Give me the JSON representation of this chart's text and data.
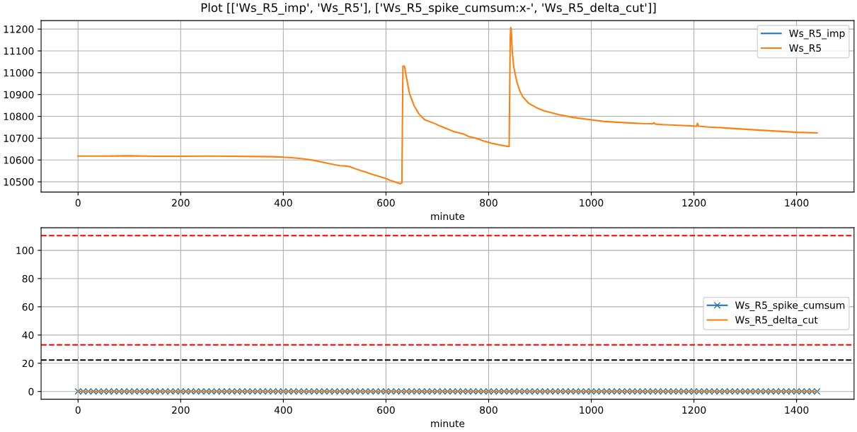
{
  "chart_data": [
    {
      "type": "line",
      "title": "Plot [['Ws_R5_imp', 'Ws_R5'], ['Ws_R5_spike_cumsum:x-', 'Ws_R5_delta_cut']]",
      "xlabel": "minute",
      "x": [
        0,
        50,
        100,
        150,
        200,
        250,
        300,
        350,
        380,
        400,
        420,
        440,
        460,
        480,
        500,
        510,
        520,
        530,
        540,
        550,
        560,
        575,
        590,
        600,
        610,
        620,
        628,
        631,
        633,
        636,
        641,
        646,
        655,
        664,
        675,
        693,
        704,
        720,
        733,
        750,
        762,
        775,
        791,
        809,
        820,
        829,
        838,
        840,
        842,
        843,
        844,
        846,
        849,
        855,
        861,
        867,
        878,
        893,
        907,
        936,
        965,
        1000,
        1023,
        1050,
        1081,
        1100,
        1120,
        1122,
        1124,
        1139,
        1170,
        1197,
        1205,
        1207,
        1209,
        1230,
        1255,
        1280,
        1313,
        1340,
        1371,
        1400,
        1440
      ],
      "series": [
        {
          "name": "Ws_R5_imp",
          "color": "#1f77b4",
          "values": [
            null,
            null,
            null,
            null,
            null,
            null,
            null,
            null,
            null,
            null,
            null,
            null,
            null,
            null,
            null,
            null,
            null,
            null,
            null,
            null,
            null,
            null,
            null,
            null,
            null,
            null,
            null,
            null,
            null,
            null,
            null,
            null,
            null,
            null,
            null,
            null,
            null,
            null,
            null,
            null,
            null,
            null,
            null,
            null,
            null,
            null,
            null,
            null,
            null,
            null,
            null,
            null,
            null,
            null,
            null,
            null,
            null,
            null,
            null,
            null,
            null,
            null,
            null,
            null,
            null,
            null,
            null,
            null,
            null,
            null,
            null,
            null,
            null,
            null,
            null,
            null,
            null,
            null,
            null,
            null,
            null,
            null,
            null
          ]
        },
        {
          "name": "Ws_R5",
          "color": "#ff7f0e",
          "values": [
            10618,
            10618,
            10619,
            10617,
            10617,
            10618,
            10617,
            10616,
            10615,
            10613,
            10610,
            10605,
            10598,
            10588,
            10578,
            10574,
            10573,
            10569,
            10560,
            10552,
            10545,
            10533,
            10522,
            10515,
            10505,
            10497,
            10491,
            10495,
            11030,
            11030,
            10965,
            10903,
            10848,
            10812,
            10785,
            10769,
            10757,
            10742,
            10730,
            10720,
            10707,
            10700,
            10687,
            10675,
            10670,
            10666,
            10662,
            10662,
            11150,
            11207,
            11200,
            11100,
            11025,
            10958,
            10915,
            10888,
            10860,
            10840,
            10826,
            10808,
            10795,
            10784,
            10777,
            10773,
            10769,
            10767,
            10766,
            10771,
            10765,
            10762,
            10759,
            10756,
            10754,
            10768,
            10755,
            10751,
            10748,
            10744,
            10739,
            10735,
            10731,
            10727,
            10724
          ]
        }
      ],
      "xlim": [
        -72,
        1512
      ],
      "ylim": [
        10453,
        11239
      ],
      "xticks": [
        0,
        200,
        400,
        600,
        800,
        1000,
        1200,
        1400
      ],
      "yticks": [
        10500,
        10600,
        10700,
        10800,
        10900,
        11000,
        11100,
        11200
      ],
      "grid": true,
      "legend": "top right",
      "marker": "none",
      "line_style": "solid"
    },
    {
      "type": "line",
      "xlabel": "minute",
      "x": [
        0,
        10,
        20,
        30,
        40,
        50,
        60,
        70,
        80,
        90,
        100,
        110,
        120,
        130,
        140,
        150,
        160,
        170,
        180,
        190,
        200,
        210,
        220,
        230,
        240,
        250,
        260,
        270,
        280,
        290,
        300,
        310,
        320,
        330,
        340,
        350,
        360,
        370,
        380,
        390,
        400,
        410,
        420,
        430,
        440,
        450,
        460,
        470,
        480,
        490,
        500,
        510,
        520,
        530,
        540,
        550,
        560,
        570,
        580,
        590,
        600,
        610,
        620,
        630,
        640,
        650,
        660,
        670,
        680,
        690,
        700,
        710,
        720,
        730,
        740,
        750,
        760,
        770,
        780,
        790,
        800,
        810,
        820,
        830,
        840,
        850,
        860,
        870,
        880,
        890,
        900,
        910,
        920,
        930,
        940,
        950,
        960,
        970,
        980,
        990,
        1000,
        1010,
        1020,
        1030,
        1040,
        1050,
        1060,
        1070,
        1080,
        1090,
        1100,
        1110,
        1120,
        1130,
        1140,
        1150,
        1160,
        1170,
        1180,
        1190,
        1200,
        1210,
        1220,
        1230,
        1240,
        1250,
        1260,
        1270,
        1280,
        1290,
        1300,
        1310,
        1320,
        1330,
        1340,
        1350,
        1360,
        1370,
        1380,
        1390,
        1400,
        1410,
        1420,
        1430,
        1440
      ],
      "series": [
        {
          "name": "Ws_R5_spike_cumsum",
          "color": "#1f77b4",
          "marker": "cross",
          "values": [
            0,
            0,
            0,
            0,
            0,
            0,
            0,
            0,
            0,
            0,
            0,
            0,
            0,
            0,
            0,
            0,
            0,
            0,
            0,
            0,
            0,
            0,
            0,
            0,
            0,
            0,
            0,
            0,
            0,
            0,
            0,
            0,
            0,
            0,
            0,
            0,
            0,
            0,
            0,
            0,
            0,
            0,
            0,
            0,
            0,
            0,
            0,
            0,
            0,
            0,
            0,
            0,
            0,
            0,
            0,
            0,
            0,
            0,
            0,
            0,
            0,
            0,
            0,
            0,
            0,
            0,
            0,
            0,
            0,
            0,
            0,
            0,
            0,
            0,
            0,
            0,
            0,
            0,
            0,
            0,
            0,
            0,
            0,
            0,
            0,
            0,
            0,
            0,
            0,
            0,
            0,
            0,
            0,
            0,
            0,
            0,
            0,
            0,
            0,
            0,
            0,
            0,
            0,
            0,
            0,
            0,
            0,
            0,
            0,
            0,
            0,
            0,
            0,
            0,
            0,
            0,
            0,
            0,
            0,
            0,
            0,
            0,
            0,
            0,
            0,
            0,
            0,
            0,
            0,
            0,
            0,
            0,
            0,
            0,
            0,
            0,
            0,
            0,
            0,
            0,
            0,
            0,
            0,
            0,
            0
          ]
        },
        {
          "name": "Ws_R5_delta_cut",
          "color": "#ff7f0e",
          "marker": "none",
          "values": [
            0,
            0,
            0,
            0,
            0,
            0,
            0,
            0,
            0,
            0,
            0,
            0,
            0,
            0,
            0,
            0,
            0,
            0,
            0,
            0,
            0,
            0,
            0,
            0,
            0,
            0,
            0,
            0,
            0,
            0,
            0,
            0,
            0,
            0,
            0,
            0,
            0,
            0,
            0,
            0,
            0,
            0,
            0,
            0,
            0,
            0,
            0,
            0,
            0,
            0,
            0,
            0,
            0,
            0,
            0,
            0,
            0,
            0,
            0,
            0,
            0,
            0,
            0,
            0,
            0,
            0,
            0,
            0,
            0,
            0,
            0,
            0,
            0,
            0,
            0,
            0,
            0,
            0,
            0,
            0,
            0,
            0,
            0,
            0,
            0,
            0,
            0,
            0,
            0,
            0,
            0,
            0,
            0,
            0,
            0,
            0,
            0,
            0,
            0,
            0,
            0,
            0,
            0,
            0,
            0,
            0,
            0,
            0,
            0,
            0,
            0,
            0,
            0,
            0,
            0,
            0,
            0,
            0,
            0,
            0,
            0,
            0,
            0,
            0,
            0,
            0,
            0,
            0,
            0,
            0,
            0,
            0,
            0,
            0,
            0,
            0,
            0,
            0,
            0,
            0,
            0,
            0,
            0,
            0,
            0
          ]
        }
      ],
      "ref_lines": [
        {
          "axis": "y",
          "value": 110.4,
          "color": "#ff0000",
          "line_style": "dashed"
        },
        {
          "axis": "y",
          "value": 33,
          "color": "#ff0000",
          "line_style": "dashed"
        },
        {
          "axis": "y",
          "value": 22.3,
          "color": "#000000",
          "line_style": "dashed"
        }
      ],
      "xlim": [
        -72,
        1512
      ],
      "ylim": [
        -5.5,
        116
      ],
      "xticks": [
        0,
        200,
        400,
        600,
        800,
        1000,
        1200,
        1400
      ],
      "yticks": [
        0,
        20,
        40,
        60,
        80,
        100
      ],
      "grid": true,
      "legend": "right",
      "line_style": "solid"
    }
  ]
}
